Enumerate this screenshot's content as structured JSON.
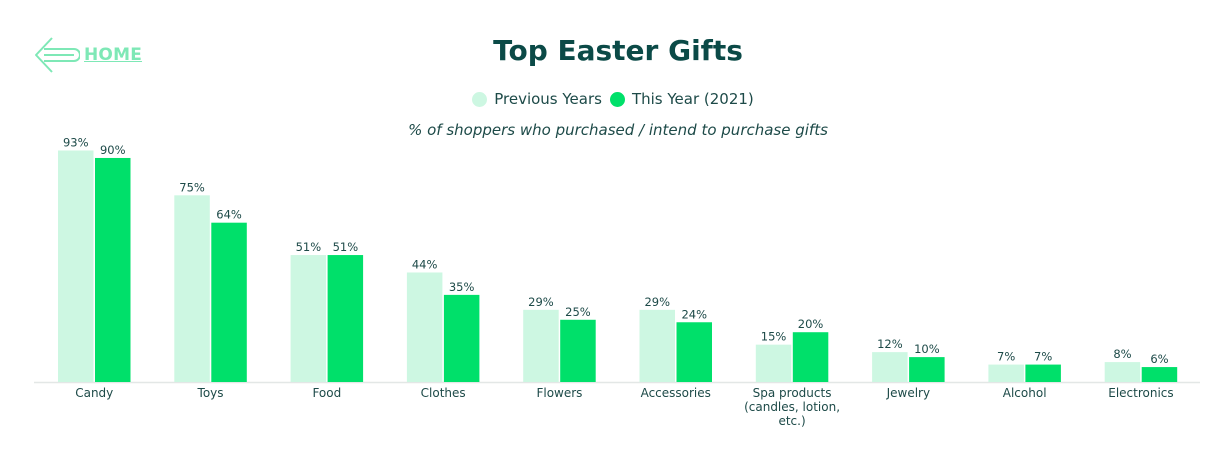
{
  "home": {
    "label": "HOME",
    "icon": "arrow-left-icon"
  },
  "chart_data": {
    "type": "bar",
    "title": "Top Easter Gifts",
    "subtitle": "% of shoppers who purchased / intend to purchase gifts",
    "categories": [
      [
        "Candy"
      ],
      [
        "Toys"
      ],
      [
        "Food"
      ],
      [
        "Clothes"
      ],
      [
        "Flowers"
      ],
      [
        "Accessories"
      ],
      [
        "Spa products",
        "(candles, lotion,",
        "etc.)"
      ],
      [
        "Jewelry"
      ],
      [
        "Alcohol"
      ],
      [
        "Electronics"
      ]
    ],
    "series": [
      {
        "name": "Previous Years",
        "color": "#cdf7e2",
        "values": [
          93,
          75,
          51,
          44,
          29,
          29,
          15,
          12,
          7,
          8
        ]
      },
      {
        "name": "This Year (2021)",
        "color": "#00e06a",
        "values": [
          90,
          64,
          51,
          35,
          25,
          24,
          20,
          10,
          7,
          6
        ]
      }
    ],
    "value_suffix": "%",
    "ylim": [
      0,
      100
    ],
    "legend": "top-center",
    "grid": false
  }
}
